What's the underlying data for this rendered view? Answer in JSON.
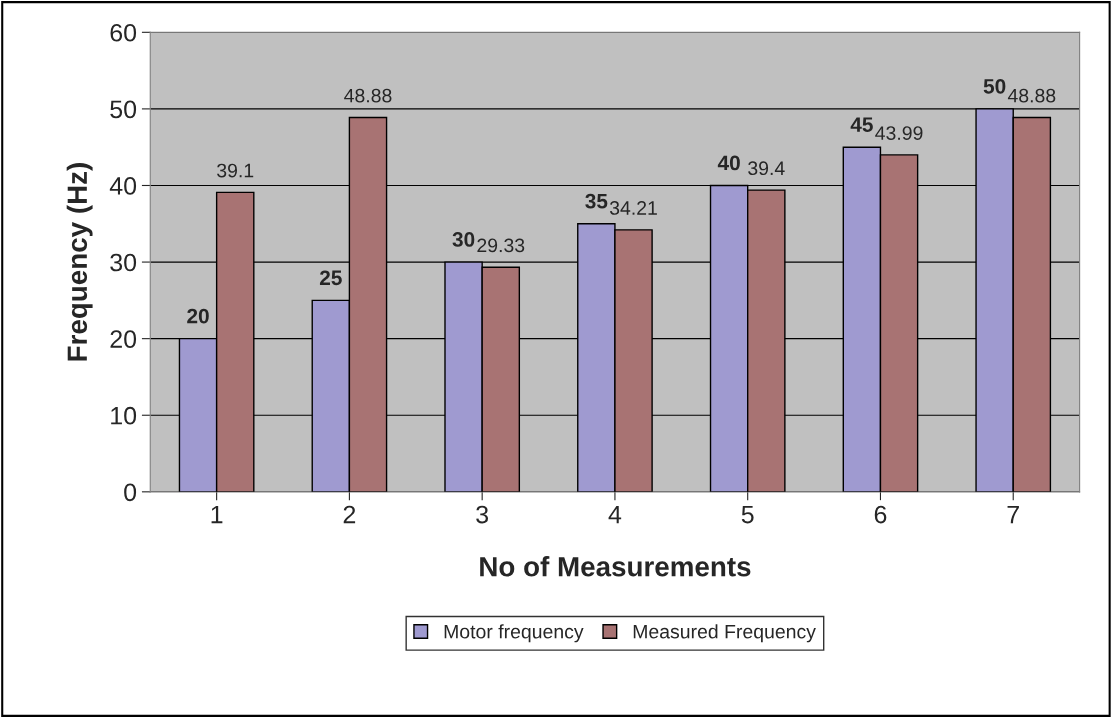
{
  "chart_data": {
    "type": "bar",
    "xlabel": "No of Measurements",
    "ylabel": "Frequency (Hz)",
    "categories": [
      "1",
      "2",
      "3",
      "4",
      "5",
      "6",
      "7"
    ],
    "series": [
      {
        "name": "Motor frequency",
        "color": "#9f9ad0",
        "values": [
          20,
          25,
          30,
          35,
          40,
          45,
          50
        ]
      },
      {
        "name": "Measured Frequency",
        "color": "#a87373",
        "values": [
          39.1,
          48.88,
          29.33,
          34.21,
          39.4,
          43.99,
          48.88
        ]
      }
    ],
    "ylim": [
      0,
      60
    ],
    "yticks": [
      0,
      10,
      20,
      30,
      40,
      50,
      60
    ],
    "grid": "y",
    "legend": "bottom",
    "data_labels": true
  }
}
